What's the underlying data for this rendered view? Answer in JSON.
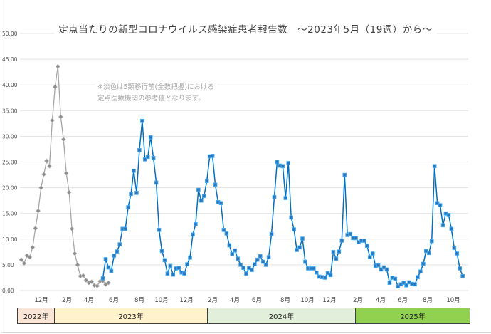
{
  "title": "定点当たりの新型コロナウイルス感染症患者報告数　～2023年5月（19週）から～",
  "note_lines": [
    "※淡色は5類移行前(全数把握)における",
    "定点医療機関の参考値となります。"
  ],
  "colors": {
    "before": "#8c8c8c",
    "after_line": "#0070c0",
    "after_marker": "#3fa9f5"
  },
  "years": [
    {
      "label": "2022年",
      "color": "#fbe5d6"
    },
    {
      "label": "2023年",
      "color": "#fff2cc"
    },
    {
      "label": "2024年",
      "color": "#e2efda"
    },
    {
      "label": "2025年",
      "color": "#92d050"
    }
  ],
  "chart_data": {
    "type": "line",
    "ylim": [
      0,
      50
    ],
    "y_ticks": [
      "0.00",
      "5.00",
      "10.00",
      "15.00",
      "20.00",
      "25.00",
      "30.00",
      "35.00",
      "40.00",
      "45.00",
      "50.00"
    ],
    "x_tick_labels": [
      "12月",
      "2月",
      "4月",
      "6月",
      "8月",
      "10月",
      "12月",
      "2月",
      "4月",
      "6月",
      "8月",
      "10月",
      "12月",
      "2月",
      "4月",
      "6月",
      "8月",
      "10月"
    ],
    "grid": true,
    "x_unit": "week",
    "series": [
      {
        "style": "gray-diamond",
        "start_index": 0,
        "values": [
          6.0,
          5.3,
          6.8,
          6.5,
          8.4,
          12.1,
          15.5,
          20.0,
          22.6,
          25.2,
          24.2,
          33.1,
          39.6,
          43.6,
          33.8,
          29.4,
          22.8,
          19.1,
          12.0,
          7.2,
          5.0,
          2.8,
          2.9,
          2.0,
          1.5,
          1.7,
          1.0,
          0.9,
          1.8,
          1.9,
          1.2,
          1.5
        ]
      },
      {
        "style": "blue-square",
        "start_index": 29,
        "values": [
          2.4,
          6.1,
          4.5,
          3.8,
          6.8,
          7.6,
          9.0,
          12.0,
          12.0,
          16.2,
          18.8,
          23.3,
          19.0,
          27.3,
          33.0,
          25.5,
          26.0,
          29.8,
          25.8,
          21.0,
          11.8,
          7.7,
          5.9,
          3.3,
          4.8,
          3.1,
          4.3,
          4.4,
          3.5,
          3.3,
          5.1,
          6.4,
          10.9,
          12.9,
          19.6,
          17.5,
          18.4,
          21.3,
          26.1,
          26.2,
          20.6,
          17.2,
          17.0,
          11.8,
          11.1,
          8.8,
          7.1,
          7.8,
          6.2,
          5.0,
          4.4,
          3.3,
          4.4,
          4.0,
          5.1,
          6.0,
          6.7,
          5.6,
          5.0,
          6.5,
          11.0,
          18.2,
          25.0,
          24.3,
          24.2,
          18.0,
          24.8,
          14.2,
          11.9,
          7.9,
          8.4,
          10.1,
          5.6,
          4.3,
          4.3,
          4.3,
          3.5,
          2.7,
          2.6,
          2.5,
          3.4,
          3.0,
          7.5,
          6.2,
          7.6,
          9.7,
          22.5,
          10.8,
          11.0,
          10.2,
          10.2,
          9.4,
          9.7,
          9.7,
          8.7,
          6.5,
          7.2,
          4.8,
          4.9,
          4.1,
          4.5,
          4.1,
          1.5,
          2.5,
          2.3,
          0.8,
          1.2,
          1.5,
          1.0,
          1.6,
          1.3,
          1.2,
          2.6,
          3.7,
          5.2,
          7.7,
          7.3,
          9.6,
          24.2,
          17.0,
          16.6,
          12.7,
          15.0,
          14.7,
          12.0,
          8.3,
          7.2,
          4.3,
          2.8
        ]
      }
    ]
  }
}
